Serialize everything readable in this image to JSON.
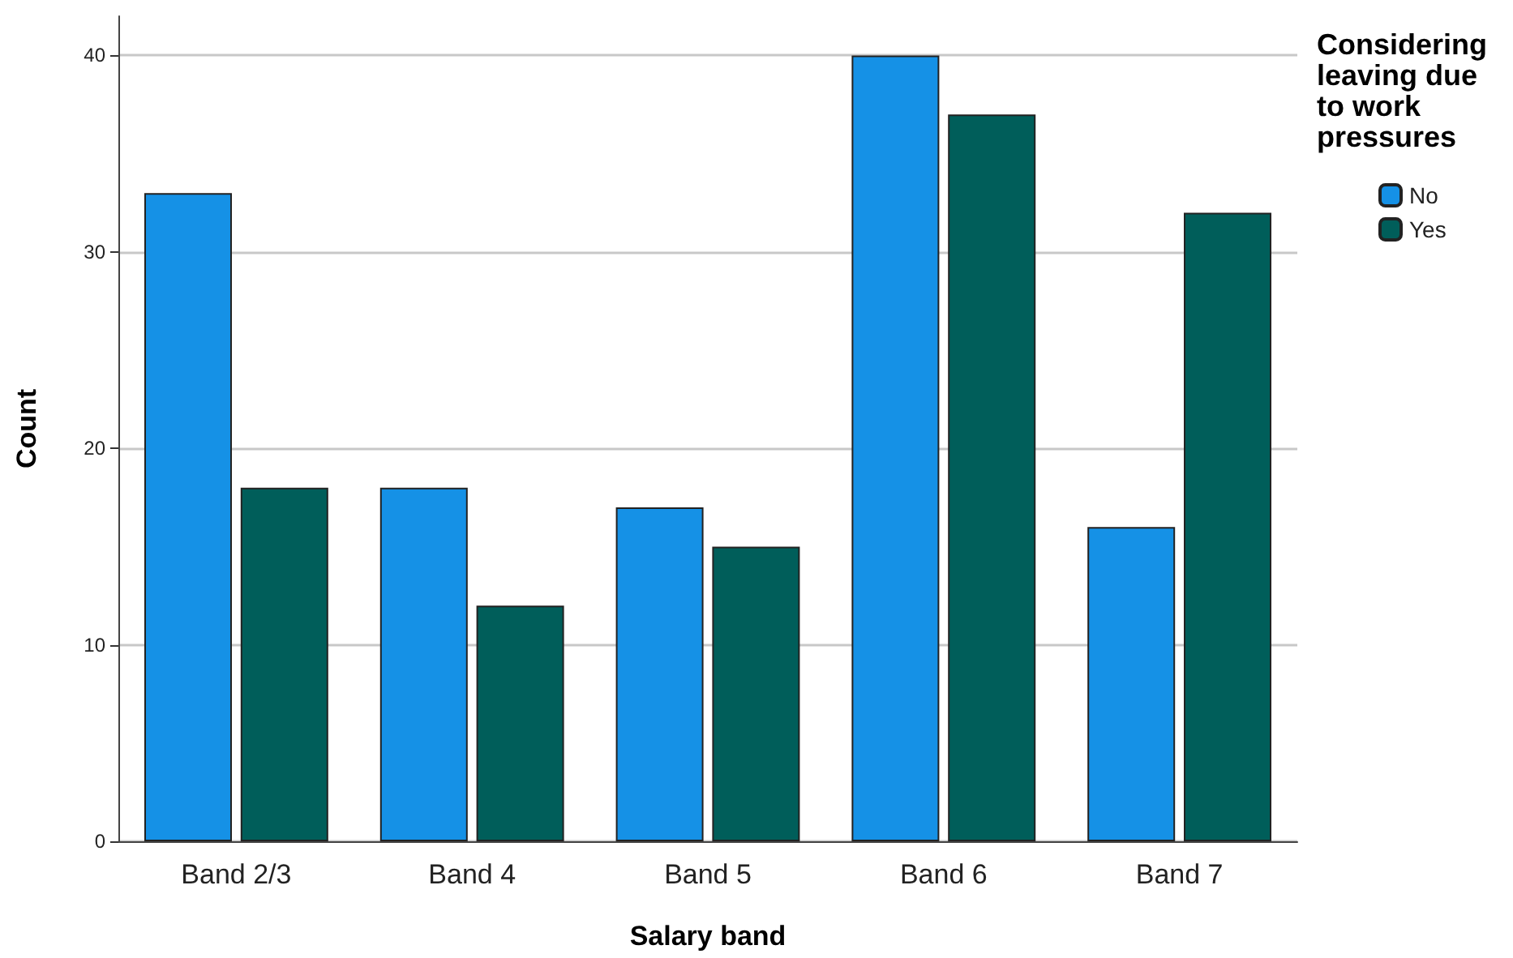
{
  "chart_data": {
    "type": "bar",
    "xlabel": "Salary band",
    "ylabel": "Count",
    "legend_title": "Considering leaving due to work pressures",
    "categories": [
      "Band 2/3",
      "Band 4",
      "Band 5",
      "Band 6",
      "Band 7"
    ],
    "series": [
      {
        "name": "No",
        "color": "#1591e6",
        "values": [
          33,
          18,
          17,
          40,
          16
        ]
      },
      {
        "name": "Yes",
        "color": "#005e5a",
        "values": [
          18,
          12,
          15,
          37,
          32
        ]
      }
    ],
    "ylim": [
      0,
      42
    ],
    "yticks": [
      0,
      10,
      20,
      30,
      40
    ],
    "grid": "y",
    "legend": "top right"
  }
}
